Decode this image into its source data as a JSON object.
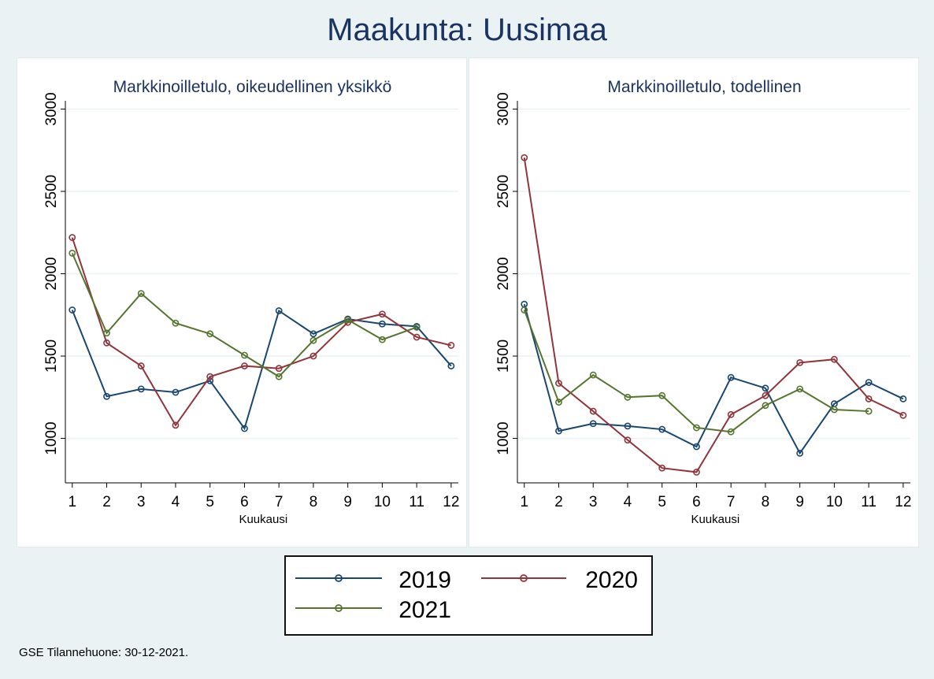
{
  "figure": {
    "title": "Maakunta: Uusimaa",
    "footnote": "GSE Tilannehuone: 30-12-2021."
  },
  "colors": {
    "series_2019": "#1a476f",
    "series_2020": "#90353b",
    "series_2021": "#55752f",
    "grid": "#eaf2f3",
    "text": "#1a3360",
    "background": "#eaf2f3"
  },
  "legend": [
    {
      "label": "2019",
      "series": "2019"
    },
    {
      "label": "2020",
      "series": "2020"
    },
    {
      "label": "2021",
      "series": "2021"
    }
  ],
  "chart_data": [
    {
      "type": "line",
      "title": "Markkinoilletulo, oikeudellinen yksikkö",
      "xlabel": "Kuukausi",
      "ylabel": "",
      "x": [
        1,
        2,
        3,
        4,
        5,
        6,
        7,
        8,
        9,
        10,
        11,
        12
      ],
      "xticks": [
        "1",
        "2",
        "3",
        "4",
        "5",
        "6",
        "7",
        "8",
        "9",
        "10",
        "11",
        "12"
      ],
      "yticks": [
        1000,
        1500,
        2000,
        2500,
        3000
      ],
      "ylim": [
        730,
        3050
      ],
      "xlim": [
        0.8,
        12.3
      ],
      "grid": true,
      "series": [
        {
          "name": "2019",
          "values": [
            1780,
            1255,
            1300,
            1280,
            1350,
            1060,
            1775,
            1635,
            1725,
            1695,
            1680,
            1440
          ]
        },
        {
          "name": "2020",
          "values": [
            2220,
            1580,
            1440,
            1080,
            1375,
            1440,
            1425,
            1500,
            1705,
            1755,
            1615,
            1565
          ]
        },
        {
          "name": "2021",
          "values": [
            2125,
            1640,
            1880,
            1700,
            1635,
            1505,
            1375,
            1595,
            1720,
            1600,
            1675,
            null
          ]
        }
      ]
    },
    {
      "type": "line",
      "title": "Markkinoilletulo, todellinen",
      "xlabel": "Kuukausi",
      "ylabel": "",
      "x": [
        1,
        2,
        3,
        4,
        5,
        6,
        7,
        8,
        9,
        10,
        11,
        12
      ],
      "xticks": [
        "1",
        "2",
        "3",
        "4",
        "5",
        "6",
        "7",
        "8",
        "9",
        "10",
        "11",
        "12"
      ],
      "yticks": [
        1000,
        1500,
        2000,
        2500,
        3000
      ],
      "ylim": [
        730,
        3050
      ],
      "xlim": [
        0.8,
        12.3
      ],
      "grid": true,
      "series": [
        {
          "name": "2019",
          "values": [
            1815,
            1045,
            1090,
            1075,
            1055,
            950,
            1370,
            1305,
            910,
            1210,
            1340,
            1240
          ]
        },
        {
          "name": "2020",
          "values": [
            2705,
            1335,
            1165,
            990,
            820,
            795,
            1145,
            1260,
            1460,
            1480,
            1240,
            1140
          ]
        },
        {
          "name": "2021",
          "values": [
            1780,
            1220,
            1385,
            1250,
            1260,
            1065,
            1040,
            1200,
            1300,
            1175,
            1165,
            null
          ]
        }
      ]
    }
  ]
}
